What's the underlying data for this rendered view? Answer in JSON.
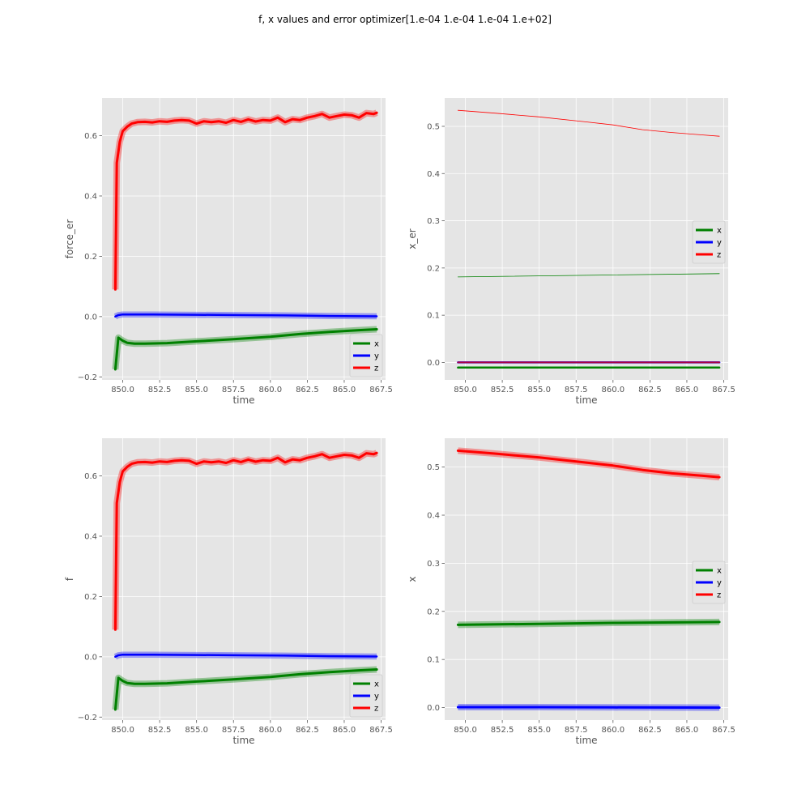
{
  "figure": {
    "title": "f, x values and error optimizer[1.e-04 1.e-04 1.e-04 1.e+02]"
  },
  "colors": {
    "x": "#008000",
    "y": "#0000ff",
    "z": "#ff0000",
    "panel_bg": "#e5e5e5",
    "grid": "#ffffff"
  },
  "chart_data": [
    {
      "type": "line",
      "id": "force_er",
      "xlabel": "time",
      "ylabel": "force_er",
      "xlim": [
        848.6,
        867.8
      ],
      "ylim": [
        -0.21,
        0.725
      ],
      "xticks": [
        850.0,
        852.5,
        855.0,
        857.5,
        860.0,
        862.5,
        865.0,
        867.5
      ],
      "xtick_labels": [
        "850.0",
        "852.5",
        "855.0",
        "857.5",
        "860.0",
        "862.5",
        "865.0",
        "867.5"
      ],
      "yticks": [
        -0.2,
        0.0,
        0.2,
        0.4,
        0.6
      ],
      "ytick_labels": [
        "−0.2",
        "0.0",
        "0.2",
        "0.4",
        "0.6"
      ],
      "grid": true,
      "legend": {
        "position": "lower-right",
        "entries": [
          "x",
          "y",
          "z"
        ]
      },
      "band": true,
      "series": [
        {
          "name": "x",
          "color": "#008000",
          "width": 3,
          "x": [
            849.5,
            849.7,
            850.0,
            850.3,
            850.8,
            851.5,
            853.0,
            855.0,
            857.5,
            860.0,
            862.0,
            864.0,
            866.0,
            867.2
          ],
          "y": [
            -0.175,
            -0.07,
            -0.08,
            -0.087,
            -0.09,
            -0.09,
            -0.088,
            -0.082,
            -0.075,
            -0.067,
            -0.058,
            -0.051,
            -0.045,
            -0.042
          ]
        },
        {
          "name": "y",
          "color": "#0000ff",
          "width": 2.5,
          "x": [
            849.5,
            849.7,
            850.0,
            852.0,
            855.0,
            858.0,
            861.0,
            864.0,
            867.2
          ],
          "y": [
            0.0,
            0.005,
            0.007,
            0.007,
            0.006,
            0.005,
            0.004,
            0.002,
            0.001
          ]
        },
        {
          "name": "z",
          "color": "#ff0000",
          "width": 3,
          "x": [
            849.5,
            849.6,
            849.8,
            850.0,
            850.3,
            850.6,
            851.0,
            851.5,
            852.0,
            852.5,
            853.0,
            853.5,
            854.0,
            854.5,
            855.0,
            855.5,
            856.0,
            856.5,
            857.0,
            857.5,
            858.0,
            858.5,
            859.0,
            859.5,
            860.0,
            860.5,
            861.0,
            861.5,
            862.0,
            862.5,
            863.0,
            863.5,
            864.0,
            864.5,
            865.0,
            865.5,
            866.0,
            866.5,
            867.0,
            867.2
          ],
          "y": [
            0.09,
            0.51,
            0.58,
            0.615,
            0.63,
            0.64,
            0.645,
            0.646,
            0.644,
            0.648,
            0.646,
            0.65,
            0.652,
            0.65,
            0.64,
            0.648,
            0.645,
            0.648,
            0.643,
            0.652,
            0.646,
            0.654,
            0.647,
            0.652,
            0.65,
            0.66,
            0.645,
            0.655,
            0.652,
            0.66,
            0.665,
            0.672,
            0.66,
            0.665,
            0.67,
            0.668,
            0.66,
            0.675,
            0.672,
            0.676
          ]
        }
      ]
    },
    {
      "type": "line",
      "id": "x_er",
      "xlabel": "time",
      "ylabel": "x_er",
      "xlim": [
        848.6,
        867.8
      ],
      "ylim": [
        -0.037,
        0.56
      ],
      "xticks": [
        850.0,
        852.5,
        855.0,
        857.5,
        860.0,
        862.5,
        865.0,
        867.5
      ],
      "xtick_labels": [
        "850.0",
        "852.5",
        "855.0",
        "857.5",
        "860.0",
        "862.5",
        "865.0",
        "867.5"
      ],
      "yticks": [
        0.0,
        0.1,
        0.2,
        0.3,
        0.4,
        0.5
      ],
      "ytick_labels": [
        "0.0",
        "0.1",
        "0.2",
        "0.3",
        "0.4",
        "0.5"
      ],
      "grid": true,
      "legend": {
        "position": "center-right",
        "entries": [
          "x",
          "y",
          "z"
        ]
      },
      "band": false,
      "series": [
        {
          "name": "x",
          "color": "#008000",
          "width": 0.8,
          "x": [
            849.5,
            867.2
          ],
          "y": [
            0.181,
            0.188
          ]
        },
        {
          "name": "z",
          "color": "#ff0000",
          "width": 0.8,
          "x": [
            849.5,
            852.0,
            855.0,
            858.0,
            860.0,
            862.0,
            864.0,
            866.0,
            867.2
          ],
          "y": [
            0.534,
            0.528,
            0.52,
            0.51,
            0.503,
            0.493,
            0.487,
            0.482,
            0.479
          ]
        },
        {
          "name": "x",
          "color": "#008000",
          "width": 2.5,
          "x": [
            849.5,
            867.2
          ],
          "y": [
            -0.011,
            -0.011
          ]
        },
        {
          "name": "y",
          "color": "#0000ff",
          "width": 2.5,
          "x": [
            849.5,
            867.2
          ],
          "y": [
            0.0,
            0.0
          ]
        },
        {
          "name": "z",
          "color": "#aa0044",
          "width": 2,
          "x": [
            849.5,
            867.2
          ],
          "y": [
            0.0,
            0.0
          ]
        }
      ]
    },
    {
      "type": "line",
      "id": "f",
      "xlabel": "time",
      "ylabel": "f",
      "xlim": [
        848.6,
        867.8
      ],
      "ylim": [
        -0.21,
        0.725
      ],
      "xticks": [
        850.0,
        852.5,
        855.0,
        857.5,
        860.0,
        862.5,
        865.0,
        867.5
      ],
      "xtick_labels": [
        "850.0",
        "852.5",
        "855.0",
        "857.5",
        "860.0",
        "862.5",
        "865.0",
        "867.5"
      ],
      "yticks": [
        -0.2,
        0.0,
        0.2,
        0.4,
        0.6
      ],
      "ytick_labels": [
        "−0.2",
        "0.0",
        "0.2",
        "0.4",
        "0.6"
      ],
      "grid": true,
      "legend": {
        "position": "lower-right",
        "entries": [
          "x",
          "y",
          "z"
        ]
      },
      "band": true,
      "series": [
        {
          "name": "x",
          "color": "#008000",
          "width": 3,
          "x": [
            849.5,
            849.7,
            850.0,
            850.3,
            850.8,
            851.5,
            853.0,
            855.0,
            857.5,
            860.0,
            862.0,
            864.0,
            866.0,
            867.2
          ],
          "y": [
            -0.175,
            -0.07,
            -0.08,
            -0.087,
            -0.09,
            -0.09,
            -0.088,
            -0.082,
            -0.075,
            -0.067,
            -0.058,
            -0.051,
            -0.045,
            -0.042
          ]
        },
        {
          "name": "y",
          "color": "#0000ff",
          "width": 2.5,
          "x": [
            849.5,
            849.7,
            850.0,
            852.0,
            855.0,
            858.0,
            861.0,
            864.0,
            867.2
          ],
          "y": [
            0.0,
            0.005,
            0.007,
            0.007,
            0.006,
            0.005,
            0.004,
            0.002,
            0.001
          ]
        },
        {
          "name": "z",
          "color": "#ff0000",
          "width": 3,
          "x": [
            849.5,
            849.6,
            849.8,
            850.0,
            850.3,
            850.6,
            851.0,
            851.5,
            852.0,
            852.5,
            853.0,
            853.5,
            854.0,
            854.5,
            855.0,
            855.5,
            856.0,
            856.5,
            857.0,
            857.5,
            858.0,
            858.5,
            859.0,
            859.5,
            860.0,
            860.5,
            861.0,
            861.5,
            862.0,
            862.5,
            863.0,
            863.5,
            864.0,
            864.5,
            865.0,
            865.5,
            866.0,
            866.5,
            867.0,
            867.2
          ],
          "y": [
            0.09,
            0.51,
            0.58,
            0.615,
            0.63,
            0.64,
            0.645,
            0.646,
            0.644,
            0.648,
            0.646,
            0.65,
            0.652,
            0.65,
            0.64,
            0.648,
            0.645,
            0.648,
            0.643,
            0.652,
            0.646,
            0.654,
            0.647,
            0.652,
            0.65,
            0.66,
            0.645,
            0.655,
            0.652,
            0.66,
            0.665,
            0.672,
            0.66,
            0.665,
            0.67,
            0.668,
            0.66,
            0.675,
            0.672,
            0.676
          ]
        }
      ]
    },
    {
      "type": "line",
      "id": "x",
      "xlabel": "time",
      "ylabel": "x",
      "xlim": [
        848.6,
        867.8
      ],
      "ylim": [
        -0.026,
        0.56
      ],
      "xticks": [
        850.0,
        852.5,
        855.0,
        857.5,
        860.0,
        862.5,
        865.0,
        867.5
      ],
      "xtick_labels": [
        "850.0",
        "852.5",
        "855.0",
        "857.5",
        "860.0",
        "862.5",
        "865.0",
        "867.5"
      ],
      "yticks": [
        0.0,
        0.1,
        0.2,
        0.3,
        0.4,
        0.5
      ],
      "ytick_labels": [
        "0.0",
        "0.1",
        "0.2",
        "0.3",
        "0.4",
        "0.5"
      ],
      "grid": true,
      "legend": {
        "position": "center-right",
        "entries": [
          "x",
          "y",
          "z"
        ]
      },
      "band": true,
      "series": [
        {
          "name": "x",
          "color": "#008000",
          "width": 3,
          "x": [
            849.5,
            855.0,
            860.0,
            867.2
          ],
          "y": [
            0.172,
            0.174,
            0.176,
            0.178
          ]
        },
        {
          "name": "y",
          "color": "#0000ff",
          "width": 3,
          "x": [
            849.5,
            855.0,
            860.0,
            867.2
          ],
          "y": [
            0.001,
            0.001,
            0.0005,
            0.0
          ]
        },
        {
          "name": "z",
          "color": "#ff0000",
          "width": 3,
          "x": [
            849.5,
            852.0,
            855.0,
            858.0,
            860.0,
            862.0,
            864.0,
            866.0,
            867.2
          ],
          "y": [
            0.534,
            0.528,
            0.52,
            0.51,
            0.503,
            0.494,
            0.487,
            0.482,
            0.479
          ]
        }
      ]
    }
  ]
}
